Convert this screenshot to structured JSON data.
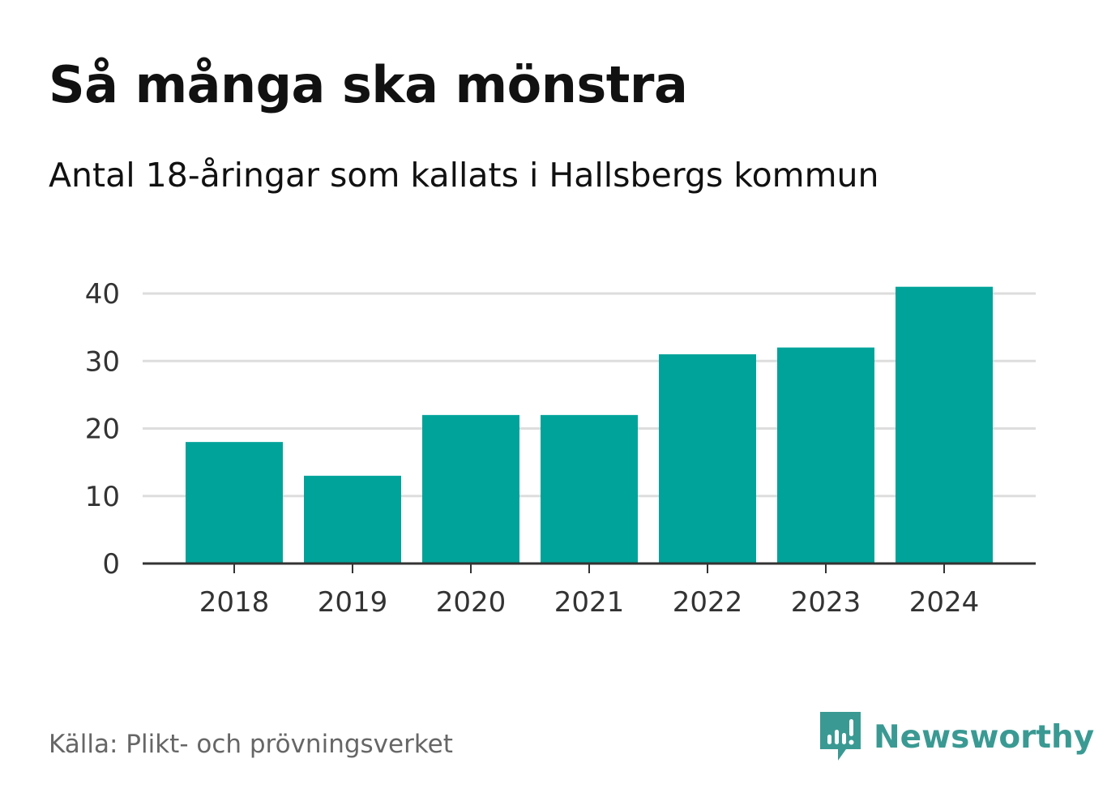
{
  "header": {
    "title": "Så många ska mönstra",
    "subtitle": "Antal 18-åringar som kallats i Hallsbergs kommun"
  },
  "footer": {
    "source": "Källa: Plikt- och prövningsverket",
    "brand": "Newsworthy",
    "brand_icon": "newsworthy-logo-icon"
  },
  "colors": {
    "bar": "#00a39a",
    "grid": "#dddddd",
    "axis": "#333333",
    "brand": "#3a9a93"
  },
  "chart_data": {
    "type": "bar",
    "title": "Så många ska mönstra",
    "subtitle": "Antal 18-åringar som kallats i Hallsbergs kommun",
    "xlabel": "",
    "ylabel": "",
    "categories": [
      "2018",
      "2019",
      "2020",
      "2021",
      "2022",
      "2023",
      "2024"
    ],
    "values": [
      18,
      13,
      22,
      22,
      31,
      32,
      41
    ],
    "yticks": [
      0,
      10,
      20,
      30,
      40
    ],
    "ylim": [
      0,
      40
    ],
    "grid": true,
    "legend": "none"
  }
}
